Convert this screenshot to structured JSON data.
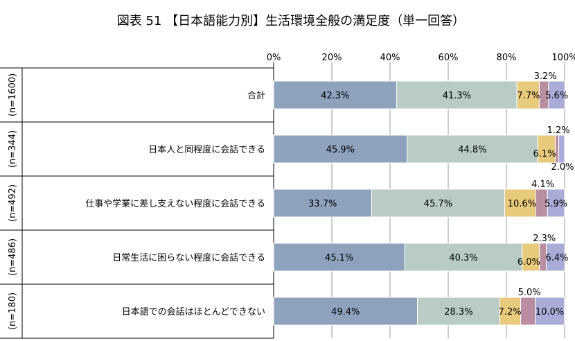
{
  "chart_data": {
    "type": "bar",
    "orientation": "horizontal",
    "stacked": "100%",
    "title": "図表 51 【日本語能力別】生活環境全般の満足度（単一回答）",
    "x_ticks": [
      "0%",
      "20%",
      "40%",
      "60%",
      "80%",
      "100%"
    ],
    "xlim": [
      0,
      100
    ],
    "grid": true,
    "legend": "none",
    "categories": [
      "合計",
      "日本人と同程度に会話できる",
      "仕事や学業に差し支えない程度に会話できる",
      "日常生活に困らない程度に会話できる",
      "日本語での会話はほとんどできない"
    ],
    "n_labels": [
      "(n=1600)",
      "(n=344)",
      "(n=492)",
      "(n=486)",
      "(n=180)"
    ],
    "colors": [
      "#8ea2bd",
      "#b8cbc4",
      "#e8ca7c",
      "#b88ea0",
      "#a9acd6"
    ],
    "series": [
      {
        "values": [
          42.3,
          45.9,
          33.7,
          45.1,
          49.4
        ],
        "labels": [
          "42.3%",
          "45.9%",
          "33.7%",
          "45.1%",
          "49.4%"
        ]
      },
      {
        "values": [
          41.3,
          44.8,
          45.7,
          40.3,
          28.3
        ],
        "labels": [
          "41.3%",
          "44.8%",
          "45.7%",
          "40.3%",
          "28.3%"
        ]
      },
      {
        "values": [
          7.7,
          6.1,
          10.6,
          6.0,
          7.2
        ],
        "labels": [
          "7.7%",
          "6.1%",
          "10.6%",
          "6.0%",
          "7.2%"
        ]
      },
      {
        "values": [
          3.2,
          1.2,
          4.1,
          2.3,
          5.0
        ],
        "labels": [
          "3.2%",
          "1.2%",
          "4.1%",
          "2.3%",
          "5.0%"
        ]
      },
      {
        "values": [
          5.6,
          2.0,
          5.9,
          6.4,
          10.0
        ],
        "labels": [
          "5.6%",
          "2.0%",
          "5.9%",
          "6.4%",
          "10.0%"
        ]
      }
    ]
  }
}
